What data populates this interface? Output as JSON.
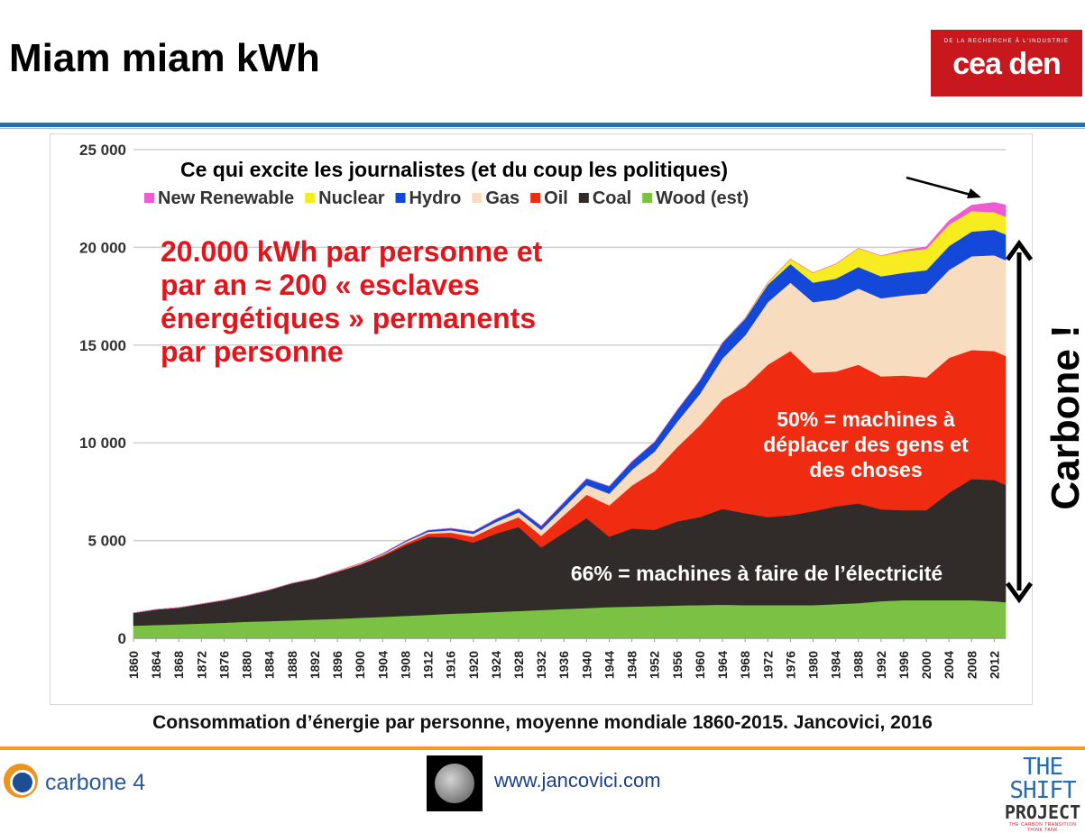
{
  "slide": {
    "title": "Miam miam kWh",
    "caption": "Consommation d’énergie par personne, moyenne mondiale 1860-2015. Jancovici, 2016",
    "url": "www.jancovici.com",
    "logos": {
      "cea_tag": "DE LA RECHERCHE À L'INDUSTRIE",
      "cea_brand": "cea den",
      "carbone4": "carbone 4",
      "shift_line1": "THE SHIFT",
      "shift_line2": "PROJECT",
      "shift_line3": "THE CARBON TRANSITION THINK TANK"
    }
  },
  "chart_data": {
    "type": "area",
    "stacked": true,
    "ylim": [
      0,
      25000
    ],
    "yticks": [
      0,
      5000,
      10000,
      15000,
      20000,
      25000
    ],
    "ytick_labels": [
      "0",
      "5 000",
      "10 000",
      "15 000",
      "20 000",
      "25 000"
    ],
    "xticks": [
      1860,
      1864,
      1868,
      1872,
      1876,
      1880,
      1884,
      1888,
      1892,
      1896,
      1900,
      1904,
      1908,
      1912,
      1916,
      1920,
      1924,
      1928,
      1932,
      1936,
      1940,
      1944,
      1948,
      1952,
      1956,
      1960,
      1964,
      1968,
      1972,
      1976,
      1980,
      1984,
      1988,
      1992,
      1996,
      2000,
      2004,
      2008,
      2012
    ],
    "grid": "horizontal",
    "legend_position": "top-left",
    "x": [
      1860,
      1864,
      1868,
      1872,
      1876,
      1880,
      1884,
      1888,
      1892,
      1896,
      1900,
      1904,
      1908,
      1912,
      1916,
      1920,
      1924,
      1928,
      1932,
      1936,
      1940,
      1944,
      1948,
      1952,
      1956,
      1960,
      1964,
      1968,
      1972,
      1976,
      1980,
      1984,
      1988,
      1992,
      1996,
      2000,
      2004,
      2008,
      2012,
      2014
    ],
    "series": [
      {
        "name": "Wood (est)",
        "color": "#7bc143",
        "values": [
          650,
          680,
          720,
          760,
          800,
          850,
          880,
          920,
          960,
          1000,
          1050,
          1100,
          1150,
          1200,
          1260,
          1300,
          1350,
          1400,
          1450,
          1500,
          1550,
          1600,
          1620,
          1650,
          1680,
          1700,
          1720,
          1700,
          1700,
          1700,
          1700,
          1750,
          1800,
          1900,
          1950,
          1950,
          1950,
          1950,
          1900,
          1850
        ]
      },
      {
        "name": "Coal",
        "color": "#312c29",
        "values": [
          650,
          800,
          850,
          1000,
          1150,
          1350,
          1600,
          1900,
          2100,
          2400,
          2700,
          3100,
          3600,
          4000,
          3900,
          3600,
          4000,
          4300,
          3200,
          3900,
          4600,
          3600,
          4000,
          3900,
          4300,
          4500,
          4900,
          4700,
          4500,
          4600,
          4800,
          5000,
          5100,
          4700,
          4600,
          4600,
          5500,
          6200,
          6200,
          6000
        ]
      },
      {
        "name": "Oil",
        "color": "#ef2b12",
        "values": [
          0,
          0,
          0,
          0,
          0,
          0,
          0,
          0,
          0,
          20,
          40,
          60,
          100,
          150,
          250,
          300,
          400,
          500,
          600,
          900,
          1200,
          1600,
          2200,
          3000,
          3800,
          4700,
          5600,
          6500,
          7800,
          8400,
          7100,
          6900,
          7100,
          6800,
          6900,
          6800,
          6900,
          6600,
          6600,
          6600
        ]
      },
      {
        "name": "Gas",
        "color": "#f7dcc0",
        "values": [
          0,
          0,
          0,
          0,
          0,
          0,
          0,
          0,
          0,
          20,
          30,
          50,
          80,
          100,
          120,
          150,
          200,
          250,
          300,
          400,
          500,
          600,
          800,
          1000,
          1300,
          1600,
          2100,
          2600,
          3200,
          3500,
          3600,
          3700,
          3900,
          4000,
          4100,
          4300,
          4500,
          4800,
          4900,
          4900
        ]
      },
      {
        "name": "Hydro",
        "color": "#1448d8",
        "values": [
          0,
          0,
          0,
          0,
          0,
          0,
          0,
          0,
          0,
          0,
          10,
          30,
          50,
          80,
          100,
          120,
          150,
          180,
          200,
          260,
          320,
          380,
          420,
          500,
          600,
          700,
          800,
          850,
          900,
          950,
          1000,
          1050,
          1100,
          1120,
          1150,
          1180,
          1220,
          1260,
          1300,
          1320
        ]
      },
      {
        "name": "Nuclear",
        "color": "#f6ec20",
        "values": [
          0,
          0,
          0,
          0,
          0,
          0,
          0,
          0,
          0,
          0,
          0,
          0,
          0,
          0,
          0,
          0,
          0,
          0,
          0,
          0,
          0,
          0,
          0,
          0,
          0,
          0,
          10,
          40,
          100,
          250,
          500,
          750,
          950,
          1050,
          1100,
          1100,
          1100,
          1050,
          900,
          900
        ]
      },
      {
        "name": "New Renewable",
        "color": "#ef5bd0",
        "values": [
          0,
          0,
          0,
          0,
          0,
          0,
          0,
          0,
          0,
          0,
          0,
          0,
          0,
          0,
          0,
          0,
          0,
          0,
          0,
          0,
          0,
          0,
          0,
          0,
          0,
          0,
          0,
          0,
          0,
          0,
          0,
          0,
          0,
          0,
          50,
          100,
          200,
          300,
          500,
          600
        ]
      }
    ],
    "annotations": [
      {
        "text": "Ce qui excite les journalistes (et du coup les politiques)",
        "color": "#000000"
      },
      {
        "text": "20.000 kWh par personne et par an ≈ 200 « esclaves énergétiques » permanents par personne",
        "lines": [
          "20.000 kWh par personne et",
          "par an ≈ 200 « esclaves",
          "énergétiques » permanents",
          "par personne"
        ],
        "color": "#e3141c"
      },
      {
        "text": "50% = machines à déplacer des gens et des choses",
        "lines": [
          "50% = machines à",
          "déplacer des gens et",
          "des choses"
        ],
        "color": "#ffffff"
      },
      {
        "text": "66% = machines à faire de l’électricité",
        "color": "#ffffff"
      },
      {
        "text": "Carbone !",
        "color": "#000000"
      }
    ]
  }
}
